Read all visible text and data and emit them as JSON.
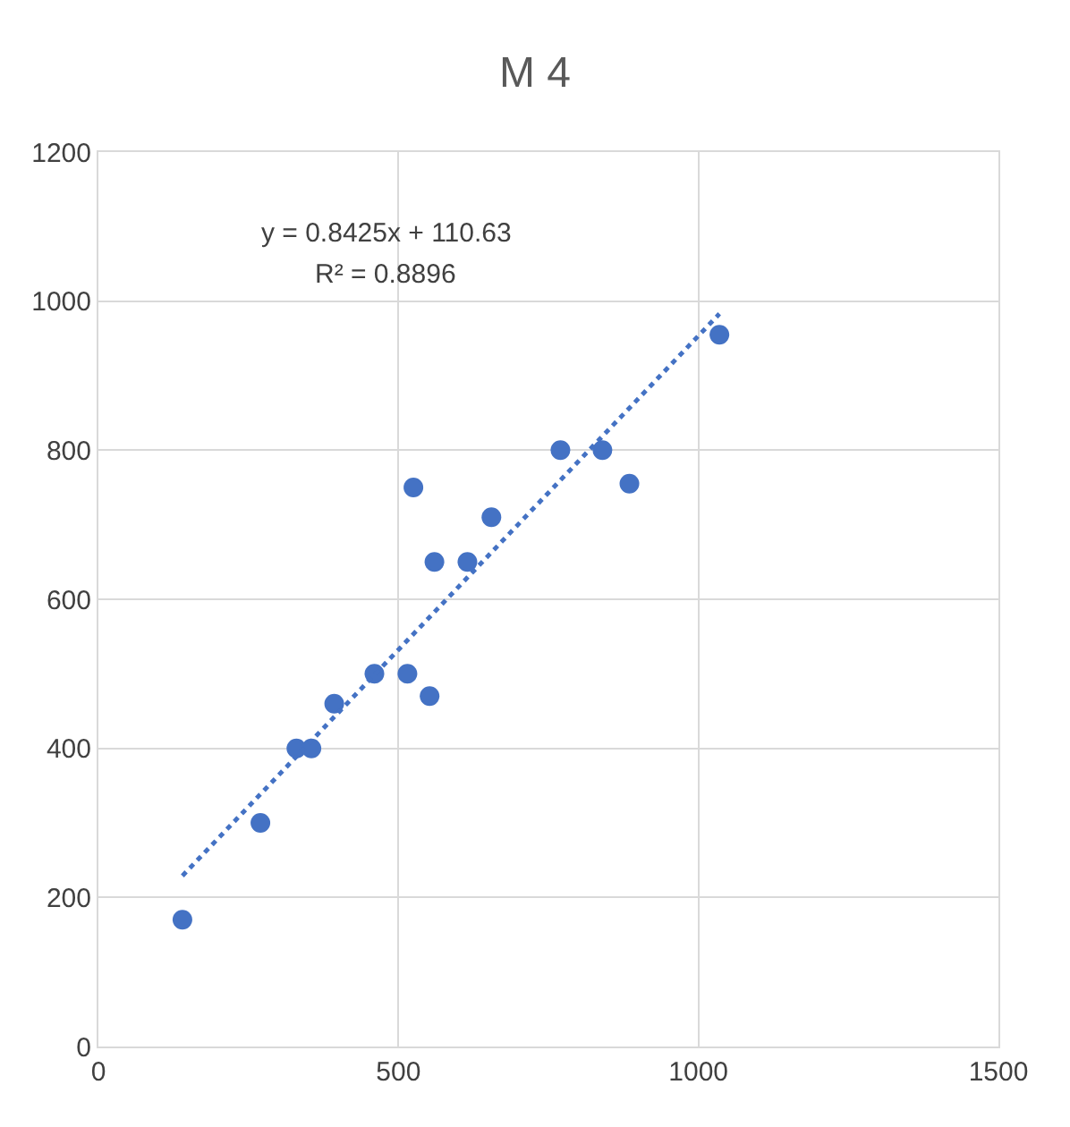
{
  "chart_data": {
    "type": "scatter",
    "title": "M 4",
    "series": [
      {
        "color": "#4472c4",
        "marker": "circle",
        "x": [
          140,
          270,
          330,
          355,
          393,
          460,
          515,
          552,
          525,
          560,
          615,
          655,
          770,
          840,
          885,
          1035
        ],
        "values": [
          170,
          300,
          400,
          400,
          460,
          500,
          500,
          470,
          750,
          650,
          650,
          710,
          800,
          800,
          755,
          955
        ]
      },
      {
        "type": "line",
        "color": "#4472c4",
        "line_style": "dotted",
        "marker": "none",
        "x": [
          140,
          1035
        ],
        "values": [
          229,
          983
        ]
      }
    ],
    "annotations": [
      "y = 0.8425x + 110.63",
      "R² = 0.8896"
    ],
    "xlim": [
      0,
      1500
    ],
    "xticks": [
      0,
      500,
      1000,
      1500
    ],
    "ylim": [
      0,
      1200
    ],
    "yticks": [
      0,
      200,
      400,
      600,
      800,
      1000,
      1200
    ],
    "grid": true
  }
}
